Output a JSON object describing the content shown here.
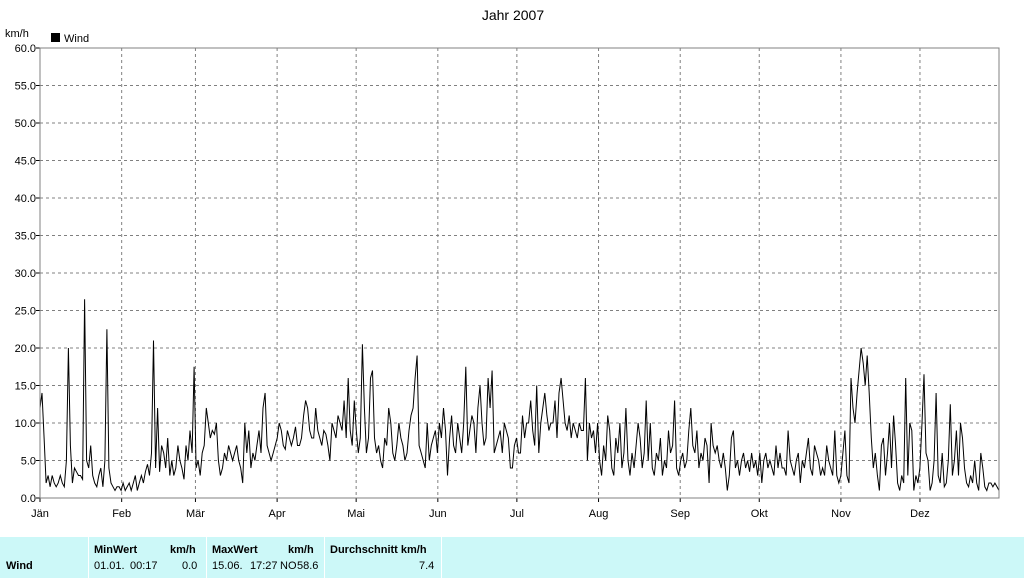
{
  "chart_data": {
    "type": "line",
    "title": "Jahr 2007",
    "ylabel": "km/h",
    "legend": "Wind",
    "legend_position": "top-left",
    "grid": true,
    "ylim": [
      0,
      60
    ],
    "xlim": [
      1,
      365
    ],
    "yticks": [
      "0.0",
      "5.0",
      "10.0",
      "15.0",
      "20.0",
      "25.0",
      "30.0",
      "35.0",
      "40.0",
      "45.0",
      "50.0",
      "55.0",
      "60.0"
    ],
    "xticks": [
      {
        "label": "Jän",
        "day": 1
      },
      {
        "label": "Feb",
        "day": 32
      },
      {
        "label": "Mär",
        "day": 60
      },
      {
        "label": "Apr",
        "day": 91
      },
      {
        "label": "Mai",
        "day": 121
      },
      {
        "label": "Jun",
        "day": 152
      },
      {
        "label": "Jul",
        "day": 182
      },
      {
        "label": "Aug",
        "day": 213
      },
      {
        "label": "Sep",
        "day": 244
      },
      {
        "label": "Okt",
        "day": 274
      },
      {
        "label": "Nov",
        "day": 305
      },
      {
        "label": "Dez",
        "day": 335
      }
    ],
    "series": [
      {
        "name": "Wind",
        "color": "#000000",
        "values": [
          12,
          14,
          8,
          2,
          3,
          1.5,
          3,
          2,
          1.5,
          2,
          3,
          2,
          1.5,
          5,
          20,
          7,
          2,
          4,
          3.5,
          3,
          3,
          2.5,
          26.5,
          5,
          4,
          7,
          3,
          2,
          1.5,
          3,
          4,
          1.5,
          5,
          22.5,
          4,
          2,
          1.5,
          1,
          1.5,
          1.5,
          1,
          2,
          1,
          1.5,
          2,
          1,
          2,
          3,
          1,
          2,
          3,
          2,
          3.5,
          4.5,
          3,
          6,
          21,
          4,
          12,
          3.5,
          7,
          6,
          4,
          8,
          3,
          5,
          3,
          4,
          7,
          5,
          4,
          2.5,
          7,
          5,
          9,
          6,
          17.5,
          4,
          5,
          3,
          6,
          7,
          12,
          10,
          8,
          9,
          8.5,
          10,
          5,
          3,
          4,
          6,
          5,
          7,
          6,
          5,
          6,
          7,
          5,
          4,
          2,
          10,
          6,
          9,
          4,
          6,
          5,
          7,
          9,
          6,
          12,
          14,
          7,
          6,
          5,
          6,
          7,
          8,
          10,
          9,
          7,
          6.5,
          9,
          8,
          7,
          8,
          9.5,
          7,
          7,
          8,
          11,
          13,
          12,
          9,
          8,
          8,
          12,
          9,
          8,
          7,
          9,
          8.5,
          7,
          5,
          10,
          9,
          8,
          11,
          10,
          9,
          13,
          8,
          16,
          9,
          7,
          13,
          9,
          6,
          8,
          20.5,
          12,
          6,
          8,
          16,
          17,
          8,
          6,
          7,
          5,
          4,
          8,
          7,
          12,
          10,
          6,
          5,
          7,
          10,
          8,
          7,
          5,
          6,
          9,
          11,
          12,
          16,
          19,
          7,
          6,
          5,
          4,
          10,
          5,
          7,
          8,
          9,
          6,
          10,
          8,
          12,
          9,
          3,
          8,
          11,
          7,
          6,
          10,
          8,
          6,
          10,
          17.5,
          7,
          9,
          11,
          10,
          6,
          12,
          15,
          10,
          7,
          8,
          16,
          12,
          17,
          6,
          7,
          8,
          9,
          6,
          10,
          9,
          8,
          4,
          4,
          7,
          8,
          6,
          6,
          11,
          8,
          10,
          10,
          13,
          9,
          7,
          15,
          6,
          10,
          12,
          14,
          11,
          9,
          10,
          10,
          13,
          8,
          14,
          16,
          13,
          10,
          9,
          11,
          8,
          10,
          9,
          8,
          10,
          9,
          9,
          16,
          5,
          10,
          8,
          9,
          6,
          10,
          5,
          3,
          7,
          5,
          11,
          9,
          4,
          3,
          8,
          6,
          10,
          4,
          6,
          12,
          5,
          3,
          6,
          4,
          7,
          10,
          8,
          4,
          6,
          13,
          5,
          10,
          4,
          3,
          6,
          5,
          8,
          3,
          5,
          4,
          9,
          6,
          7,
          13,
          4,
          3,
          5,
          6,
          4,
          5,
          9,
          12,
          7,
          6,
          9,
          4,
          6,
          5,
          8,
          7,
          2,
          10,
          7,
          6,
          7,
          5,
          4,
          6,
          4,
          1,
          3,
          8,
          9,
          4,
          5,
          3,
          5,
          6,
          4,
          5,
          3.5,
          6,
          4,
          5,
          3,
          6,
          2,
          5,
          6,
          4,
          5,
          4,
          3,
          7,
          4,
          6,
          4,
          4,
          3,
          9,
          5,
          4,
          3,
          5,
          6,
          2,
          5,
          4,
          6,
          8,
          4,
          3,
          7,
          6,
          5,
          3,
          4,
          3,
          7,
          5,
          4,
          3,
          9,
          3,
          2,
          3,
          6,
          9,
          3,
          2,
          16,
          12,
          10,
          14,
          17,
          20,
          18,
          15,
          19,
          14,
          8,
          4,
          6,
          3,
          1,
          7,
          8,
          3,
          6,
          10,
          4,
          11,
          7,
          2,
          1,
          3,
          2,
          16,
          3,
          10,
          9,
          1,
          3,
          2,
          4,
          10,
          16.5,
          6,
          5,
          1,
          2,
          5,
          14,
          3,
          2,
          6,
          1.5,
          2,
          5,
          12.5,
          3,
          5,
          9,
          3,
          10,
          8,
          4,
          2,
          1.5,
          3,
          2,
          5,
          2,
          1,
          6,
          4,
          1.5,
          1,
          2,
          2,
          1.5,
          2,
          1.5,
          1
        ]
      }
    ]
  },
  "stats": {
    "row_label": "Wind",
    "min_header": "MinWert",
    "min_unit": "km/h",
    "min_date": "01.01.",
    "min_time": "00:17",
    "min_value": "0.0",
    "max_header": "MaxWert",
    "max_unit": "km/h",
    "max_date": "15.06.",
    "max_time": "17:27",
    "max_dir": "NO",
    "max_value": "58.6",
    "avg_header": "Durchschnitt km/h",
    "avg_value": "7.4"
  }
}
